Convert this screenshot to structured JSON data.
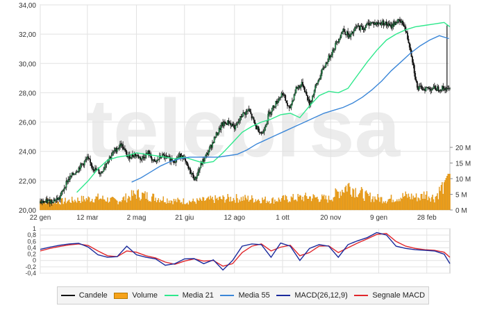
{
  "watermark": "telebrsa",
  "colors": {
    "candle": "#111111",
    "candle_up": "#2ea05a",
    "volume": "#f6a21a",
    "ma21": "#2ee88c",
    "ma55": "#3a86d8",
    "macd": "#1a2a9c",
    "signal": "#e0262b",
    "grid": "#e2e2e2",
    "axis_text": "#333333"
  },
  "chart_data": [
    {
      "type": "line",
      "title": "",
      "xlabel": "",
      "ylabel": "",
      "ylim": [
        20,
        34
      ],
      "y_ticks": [
        "20,00",
        "22,00",
        "24,00",
        "26,00",
        "28,00",
        "30,00",
        "32,00",
        "34,00"
      ],
      "volume_axis": {
        "ylim_millions": [
          0,
          20
        ],
        "ticks": [
          "0 M",
          "5 M",
          "10 M",
          "15 M",
          "20 M"
        ]
      },
      "x_ticks": [
        {
          "label": "22 gen",
          "day": 0
        },
        {
          "label": "12 mar",
          "day": 49
        },
        {
          "label": "2 mag",
          "day": 100
        },
        {
          "label": "21 giu",
          "day": 150
        },
        {
          "label": "12 ago",
          "day": 202
        },
        {
          "label": "1 ott",
          "day": 252
        },
        {
          "label": "20 nov",
          "day": 302
        },
        {
          "label": "9 gen",
          "day": 352
        },
        {
          "label": "28 feb",
          "day": 402
        }
      ],
      "grid": true,
      "series": [
        {
          "name": "Candele",
          "x": [
            0,
            10,
            20,
            28,
            35,
            42,
            49,
            56,
            63,
            70,
            77,
            84,
            91,
            98,
            105,
            112,
            119,
            126,
            133,
            140,
            147,
            154,
            161,
            168,
            175,
            182,
            189,
            196,
            203,
            210,
            217,
            224,
            231,
            238,
            245,
            252,
            259,
            266,
            273,
            280,
            287,
            294,
            301,
            308,
            315,
            322,
            329,
            336,
            343,
            350,
            357,
            364,
            371,
            378,
            385,
            392,
            399,
            406,
            413,
            420,
            424,
            426
          ],
          "values": [
            20.5,
            20.6,
            20.8,
            22.0,
            22.5,
            23.0,
            23.5,
            22.8,
            22.5,
            23.4,
            24.0,
            24.5,
            23.6,
            23.8,
            23.5,
            23.9,
            23.2,
            23.7,
            23.5,
            23.4,
            23.8,
            22.8,
            22.1,
            23.2,
            24.0,
            25.0,
            25.8,
            26.0,
            25.6,
            26.5,
            26.8,
            25.7,
            25.2,
            26.6,
            27.3,
            28.0,
            26.8,
            28.3,
            28.6,
            27.2,
            28.5,
            29.6,
            30.5,
            31.4,
            32.3,
            31.8,
            32.5,
            32.4,
            32.8,
            32.7,
            32.8,
            32.5,
            32.9,
            32.7,
            31.0,
            28.3,
            28.3,
            28.3,
            28.3,
            28.3,
            28.3,
            28.3
          ]
        },
        {
          "name": "Volume",
          "x": [
            0,
            20,
            40,
            60,
            80,
            100,
            120,
            140,
            160,
            180,
            200,
            220,
            240,
            260,
            280,
            300,
            320,
            340,
            360,
            380,
            395,
            400,
            410,
            420,
            424
          ],
          "values": [
            3.2,
            2.8,
            3.5,
            4.1,
            3.0,
            5.5,
            4.2,
            3.1,
            2.9,
            3.6,
            4.0,
            3.8,
            3.3,
            3.9,
            4.4,
            3.7,
            8.4,
            4.6,
            3.5,
            4.8,
            4.2,
            5.6,
            4.1,
            8.8,
            11.5
          ]
        },
        {
          "name": "Media 21",
          "x": [
            38,
            50,
            60,
            70,
            80,
            90,
            100,
            110,
            120,
            130,
            140,
            150,
            160,
            170,
            180,
            190,
            200,
            210,
            220,
            230,
            240,
            250,
            260,
            270,
            280,
            290,
            300,
            310,
            320,
            330,
            340,
            350,
            360,
            370,
            380,
            390,
            400,
            410,
            420,
            426
          ],
          "values": [
            21.2,
            22.0,
            22.8,
            23.4,
            23.6,
            23.7,
            23.9,
            23.8,
            23.7,
            23.6,
            23.5,
            23.6,
            23.4,
            23.2,
            23.3,
            23.9,
            24.6,
            25.3,
            25.7,
            26.0,
            26.2,
            26.5,
            26.6,
            26.3,
            27.1,
            27.8,
            28.1,
            28.0,
            28.3,
            29.2,
            30.1,
            30.9,
            31.6,
            32.0,
            32.3,
            32.5,
            32.6,
            32.7,
            32.8,
            32.5
          ]
        },
        {
          "name": "Media 55",
          "x": [
            95,
            105,
            115,
            125,
            135,
            145,
            155,
            165,
            175,
            185,
            195,
            205,
            215,
            225,
            235,
            245,
            255,
            265,
            275,
            285,
            295,
            305,
            315,
            325,
            335,
            345,
            355,
            365,
            375,
            385,
            395,
            405,
            415,
            425
          ],
          "values": [
            21.9,
            22.2,
            22.6,
            23.0,
            23.3,
            23.5,
            23.6,
            23.6,
            23.6,
            23.6,
            23.7,
            23.8,
            24.1,
            24.5,
            24.8,
            25.1,
            25.4,
            25.7,
            26.0,
            26.3,
            26.6,
            26.8,
            27.0,
            27.3,
            27.7,
            28.2,
            28.8,
            29.5,
            30.1,
            30.7,
            31.2,
            31.6,
            31.9,
            31.7
          ]
        }
      ]
    },
    {
      "type": "line",
      "title": "",
      "ylim": [
        -0.4,
        1.0
      ],
      "y_ticks": [
        "1",
        "0,8",
        "0,6",
        "0,4",
        "0,2",
        "0",
        "-0,2",
        "-0,4"
      ],
      "series": [
        {
          "name": "MACD(26,12,9)",
          "x": [
            0,
            10,
            20,
            30,
            40,
            50,
            60,
            70,
            80,
            90,
            100,
            110,
            120,
            130,
            140,
            150,
            160,
            170,
            180,
            190,
            200,
            210,
            220,
            230,
            240,
            250,
            260,
            270,
            280,
            290,
            300,
            310,
            320,
            330,
            340,
            350,
            360,
            370,
            380,
            390,
            400,
            410,
            420,
            426
          ],
          "values": [
            0.35,
            0.42,
            0.48,
            0.52,
            0.54,
            0.42,
            0.18,
            0.1,
            0.12,
            0.45,
            0.18,
            0.1,
            0.05,
            -0.15,
            -0.1,
            0.05,
            0.06,
            -0.1,
            0.02,
            -0.3,
            0.0,
            0.45,
            0.52,
            0.5,
            0.1,
            0.55,
            0.45,
            0.0,
            0.38,
            0.5,
            0.45,
            0.1,
            0.5,
            0.62,
            0.72,
            0.88,
            0.8,
            0.45,
            0.38,
            0.34,
            0.32,
            0.3,
            0.2,
            -0.1
          ]
        },
        {
          "name": "Segnale MACD",
          "x": [
            0,
            10,
            20,
            30,
            40,
            50,
            60,
            70,
            80,
            90,
            100,
            110,
            120,
            130,
            140,
            150,
            160,
            170,
            180,
            190,
            200,
            210,
            220,
            230,
            240,
            250,
            260,
            270,
            280,
            290,
            300,
            310,
            320,
            330,
            340,
            350,
            360,
            370,
            380,
            390,
            400,
            410,
            420,
            426
          ],
          "values": [
            0.3,
            0.38,
            0.44,
            0.49,
            0.52,
            0.47,
            0.3,
            0.15,
            0.12,
            0.3,
            0.26,
            0.15,
            0.08,
            -0.05,
            -0.12,
            -0.02,
            0.05,
            -0.02,
            0.0,
            -0.18,
            -0.1,
            0.25,
            0.45,
            0.52,
            0.3,
            0.42,
            0.48,
            0.15,
            0.25,
            0.45,
            0.46,
            0.25,
            0.4,
            0.55,
            0.68,
            0.82,
            0.85,
            0.6,
            0.45,
            0.38,
            0.34,
            0.32,
            0.26,
            0.1
          ]
        }
      ]
    }
  ],
  "legend": [
    {
      "label": "Candele",
      "kind": "line",
      "color": "#111111"
    },
    {
      "label": "Volume",
      "kind": "bar",
      "color": "#f6a21a"
    },
    {
      "label": "Media 21",
      "kind": "line",
      "color": "#2ee88c"
    },
    {
      "label": "Media 55",
      "kind": "line",
      "color": "#3a86d8"
    },
    {
      "label": "MACD(26,12,9)",
      "kind": "line",
      "color": "#1a2a9c"
    },
    {
      "label": "Segnale MACD",
      "kind": "line",
      "color": "#e0262b"
    }
  ]
}
